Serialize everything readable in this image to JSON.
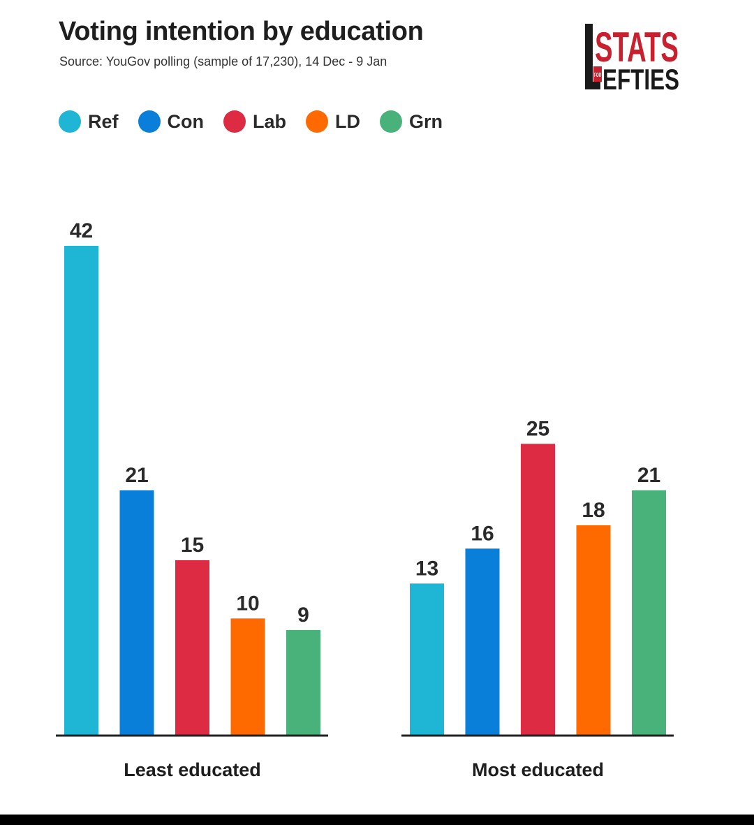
{
  "colors": {
    "Ref": "#1fb5d4",
    "Con": "#0a7fd9",
    "Lab": "#de2b44",
    "LD": "#ff6a00",
    "Grn": "#48b27a",
    "axis": "#222222",
    "logo_red": "#c8202e",
    "logo_dark": "#1a1a1a"
  },
  "logo": {
    "top_text": "STATS",
    "small_text": "FOR",
    "bottom_text": "EFTIES",
    "initial": "L"
  },
  "chart_data": {
    "type": "bar",
    "title": "Voting intention by education",
    "subtitle": "Source: YouGov polling (sample of 17,230), 14 Dec - 9 Jan",
    "categories": [
      "Least educated",
      "Most educated"
    ],
    "series": [
      {
        "name": "Ref",
        "values": [
          42,
          13
        ]
      },
      {
        "name": "Con",
        "values": [
          21,
          16
        ]
      },
      {
        "name": "Lab",
        "values": [
          15,
          25
        ]
      },
      {
        "name": "LD",
        "values": [
          10,
          18
        ]
      },
      {
        "name": "Grn",
        "values": [
          9,
          21
        ]
      }
    ],
    "xlabel": "",
    "ylabel": "",
    "ylim": [
      0,
      42
    ],
    "grid": false,
    "legend": "top-left",
    "data_labels": true
  }
}
